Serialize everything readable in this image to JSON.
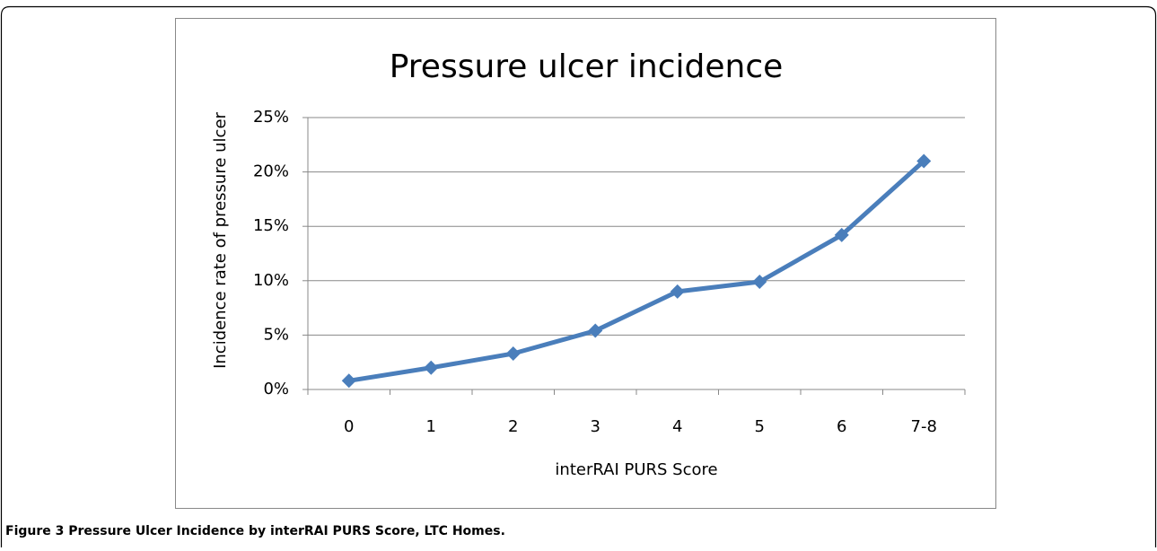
{
  "chart_data": {
    "type": "line",
    "title": "Pressure ulcer incidence",
    "x_label": "interRAI PURS Score",
    "y_label": "Incidence rate of pressure ulcer",
    "categories": [
      "0",
      "1",
      "2",
      "3",
      "4",
      "5",
      "6",
      "7-8"
    ],
    "series": [
      {
        "name": "Incidence",
        "color": "#4a7ebb",
        "values": [
          0.8,
          2.0,
          3.3,
          5.4,
          9.0,
          9.9,
          14.2,
          21.0
        ]
      }
    ],
    "ylim": [
      0,
      25
    ],
    "yticks": [
      {
        "value": 0,
        "label": "0%"
      },
      {
        "value": 5,
        "label": "5%"
      },
      {
        "value": 10,
        "label": "10%"
      },
      {
        "value": 15,
        "label": "15%"
      },
      {
        "value": 20,
        "label": "20%"
      },
      {
        "value": 25,
        "label": "25%"
      }
    ],
    "grid": true
  },
  "caption": {
    "label": "Figure 3",
    "text": "Pressure Ulcer Incidence by interRAI PURS Score, LTC Homes."
  }
}
